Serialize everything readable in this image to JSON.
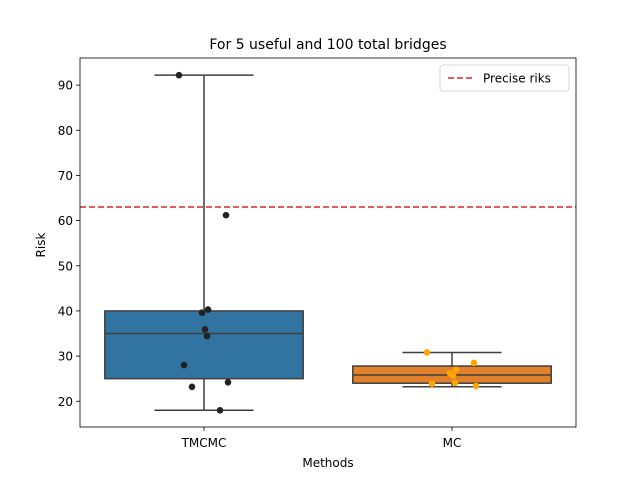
{
  "chart_data": {
    "type": "box",
    "title": "For 5 useful and 100 total bridges",
    "xlabel": "Methods",
    "ylabel": "Risk",
    "categories": [
      "TMCMC",
      "MC"
    ],
    "ylim": [
      14.3,
      96
    ],
    "yticks": [
      20,
      30,
      40,
      50,
      60,
      70,
      80,
      90
    ],
    "grid": false,
    "legend": {
      "placement": "top-right",
      "entries": [
        "Precise riks"
      ]
    },
    "reference_line": {
      "name": "Precise riks",
      "y": 63,
      "color": "#d62728",
      "style": "dashed"
    },
    "boxes": [
      {
        "category": "TMCMC",
        "color": "#3274a1",
        "q1": 25,
        "median": 35,
        "q3": 40,
        "whisker_low": 18,
        "whisker_high": 92.2
      },
      {
        "category": "MC",
        "color": "#e1812c",
        "q1": 24,
        "median": 25.8,
        "q3": 27.8,
        "whisker_low": 23.2,
        "whisker_high": 30.8
      }
    ],
    "points": [
      {
        "category": "TMCMC",
        "color": "#222222",
        "values": [
          92.2,
          61.2,
          40.3,
          39.6,
          35.9,
          34.4,
          28,
          24.2,
          23.2,
          18
        ]
      },
      {
        "category": "MC",
        "color": "#ffa500",
        "values": [
          30.8,
          28.5,
          27,
          26.2,
          25.7,
          24.1,
          23.9,
          23.4
        ]
      }
    ]
  }
}
